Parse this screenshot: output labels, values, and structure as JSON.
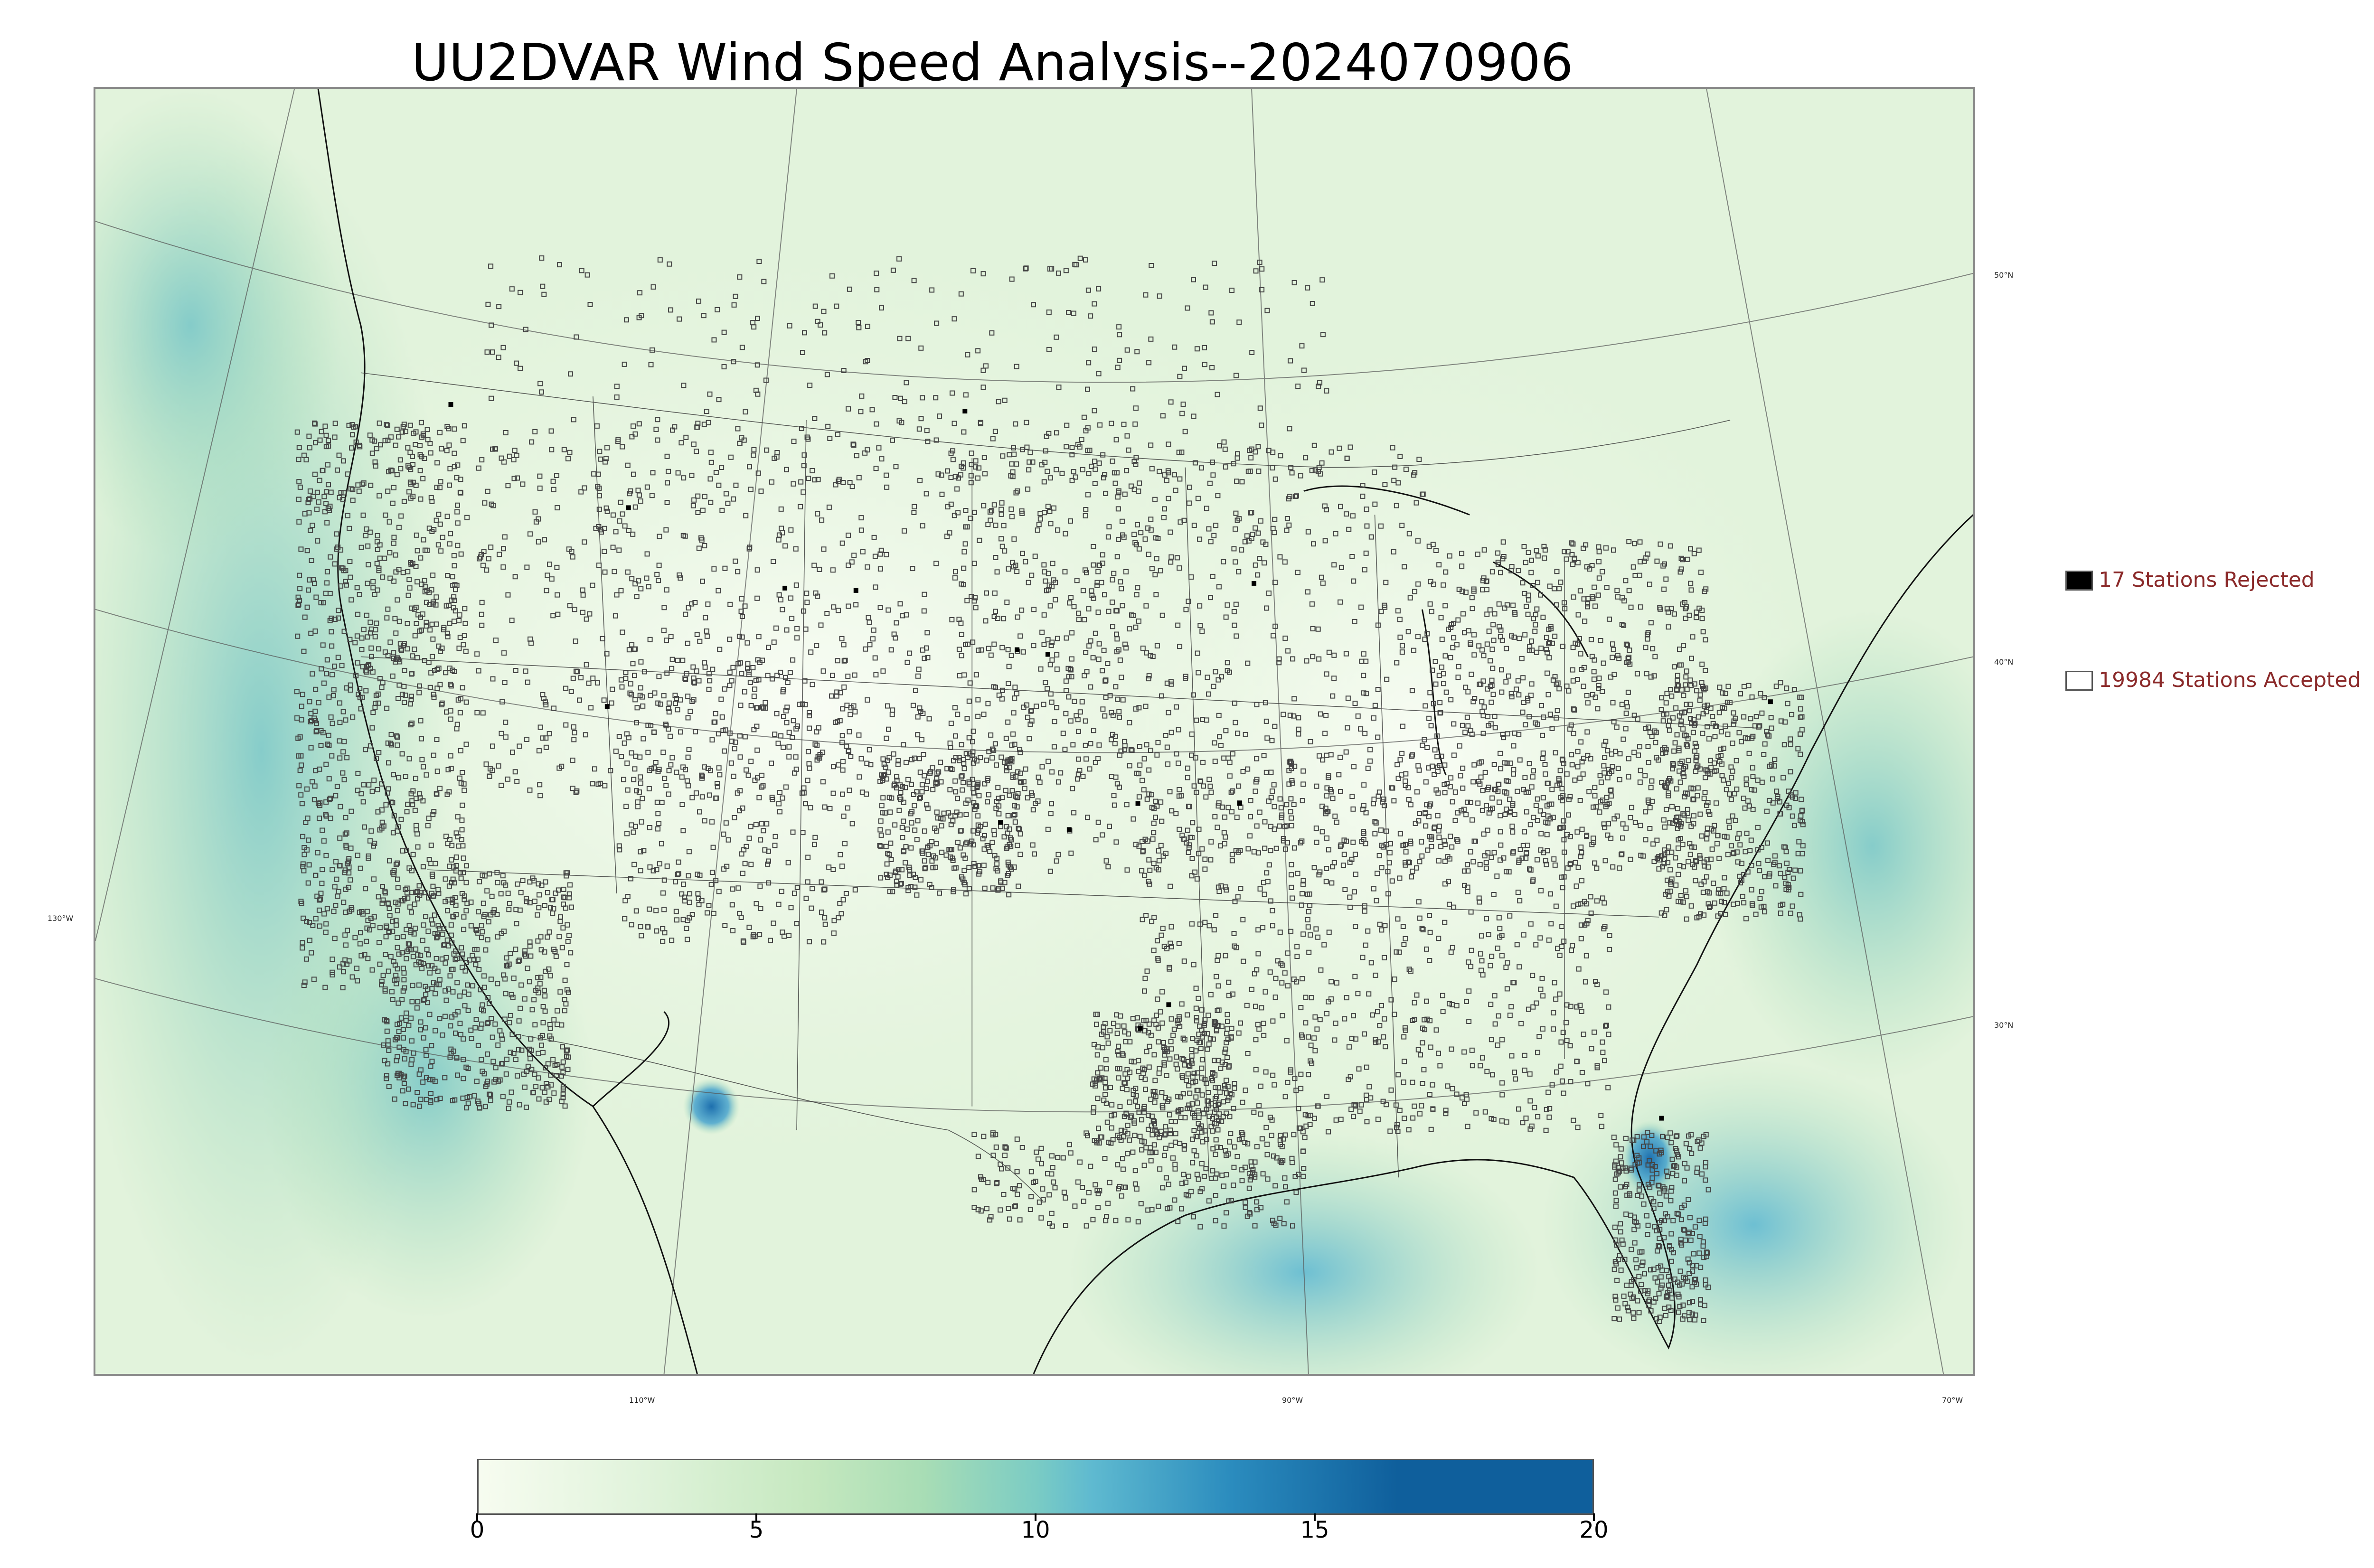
{
  "title": "UU2DVAR Wind Speed Analysis--2024070906",
  "map": {
    "latitude_labels": [
      "50°N",
      "40°N",
      "30°N"
    ],
    "longitude_labels": [
      "130°W",
      "110°W",
      "90°W",
      "70°W"
    ]
  },
  "legend": {
    "rejected": {
      "label": "17 Stations Rejected",
      "color": "#000000"
    },
    "accepted": {
      "label": "19984 Stations Accepted",
      "color": "#ffffff"
    }
  },
  "colorbar": {
    "min": 0,
    "max": 20,
    "tick_labels": [
      "0",
      "5",
      "10",
      "15",
      "20"
    ],
    "tick_values": [
      0,
      5,
      10,
      15,
      20
    ],
    "stops": [
      {
        "value": 0,
        "color": "#f7fcf0"
      },
      {
        "value": 3,
        "color": "#e0f3db"
      },
      {
        "value": 6,
        "color": "#c5e8bf"
      },
      {
        "value": 8,
        "color": "#a8ddb5"
      },
      {
        "value": 10,
        "color": "#7bccc4"
      },
      {
        "value": 11,
        "color": "#5fbad0"
      },
      {
        "value": 13.5,
        "color": "#2b8cbe"
      },
      {
        "value": 16.5,
        "color": "#0f5f9c"
      },
      {
        "value": 20,
        "color": "#0f5f9c"
      }
    ]
  }
}
